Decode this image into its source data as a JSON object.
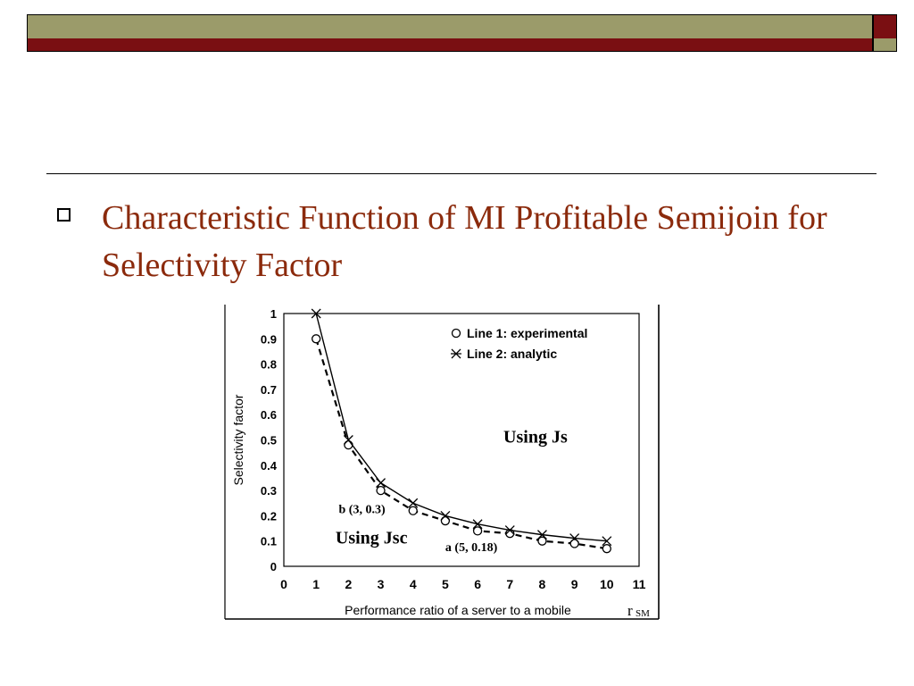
{
  "slide": {
    "bullet_text": "Characteristic Function of MI Profitable Semijoin for Selectivity Factor",
    "colors": {
      "title": "#8b2a0c",
      "band_olive": "#9b9b6a",
      "band_maroon": "#7a0f12"
    }
  },
  "chart_data": {
    "type": "line",
    "xlabel": "Performance ratio of a server to a mobile",
    "xlabel_symbol": "r",
    "xlabel_subscript": "SM",
    "ylabel": "Selectivity factor",
    "xlim": [
      0,
      11
    ],
    "ylim": [
      0,
      1
    ],
    "x_ticks": [
      "0",
      "1",
      "2",
      "3",
      "4",
      "5",
      "6",
      "7",
      "8",
      "9",
      "10",
      "11"
    ],
    "y_ticks": [
      "0",
      "0.1",
      "0.2",
      "0.3",
      "0.4",
      "0.5",
      "0.6",
      "0.7",
      "0.8",
      "0.9",
      "1"
    ],
    "grid": false,
    "legend_position": "top-right",
    "series": [
      {
        "name": "Line 1: experimental",
        "marker": "circle",
        "line": "dashed",
        "x": [
          1,
          2,
          3,
          4,
          5,
          6,
          7,
          8,
          9,
          10
        ],
        "y": [
          0.9,
          0.48,
          0.3,
          0.22,
          0.18,
          0.14,
          0.13,
          0.1,
          0.09,
          0.07
        ]
      },
      {
        "name": "Line 2: analytic",
        "marker": "x",
        "line": "solid",
        "x": [
          1,
          2,
          3,
          4,
          5,
          6,
          7,
          8,
          9,
          10
        ],
        "y": [
          1.0,
          0.5,
          0.33,
          0.25,
          0.2,
          0.167,
          0.143,
          0.125,
          0.111,
          0.1
        ]
      }
    ],
    "annotations": [
      {
        "text": "Using Js",
        "x": 6.8,
        "y": 0.49
      },
      {
        "text": "Using Jsc",
        "x": 1.6,
        "y": 0.09
      },
      {
        "text": "b (3, 0.3)",
        "x": 1.7,
        "y": 0.21
      },
      {
        "text": "a (5, 0.18)",
        "x": 5.0,
        "y": 0.06
      }
    ]
  }
}
